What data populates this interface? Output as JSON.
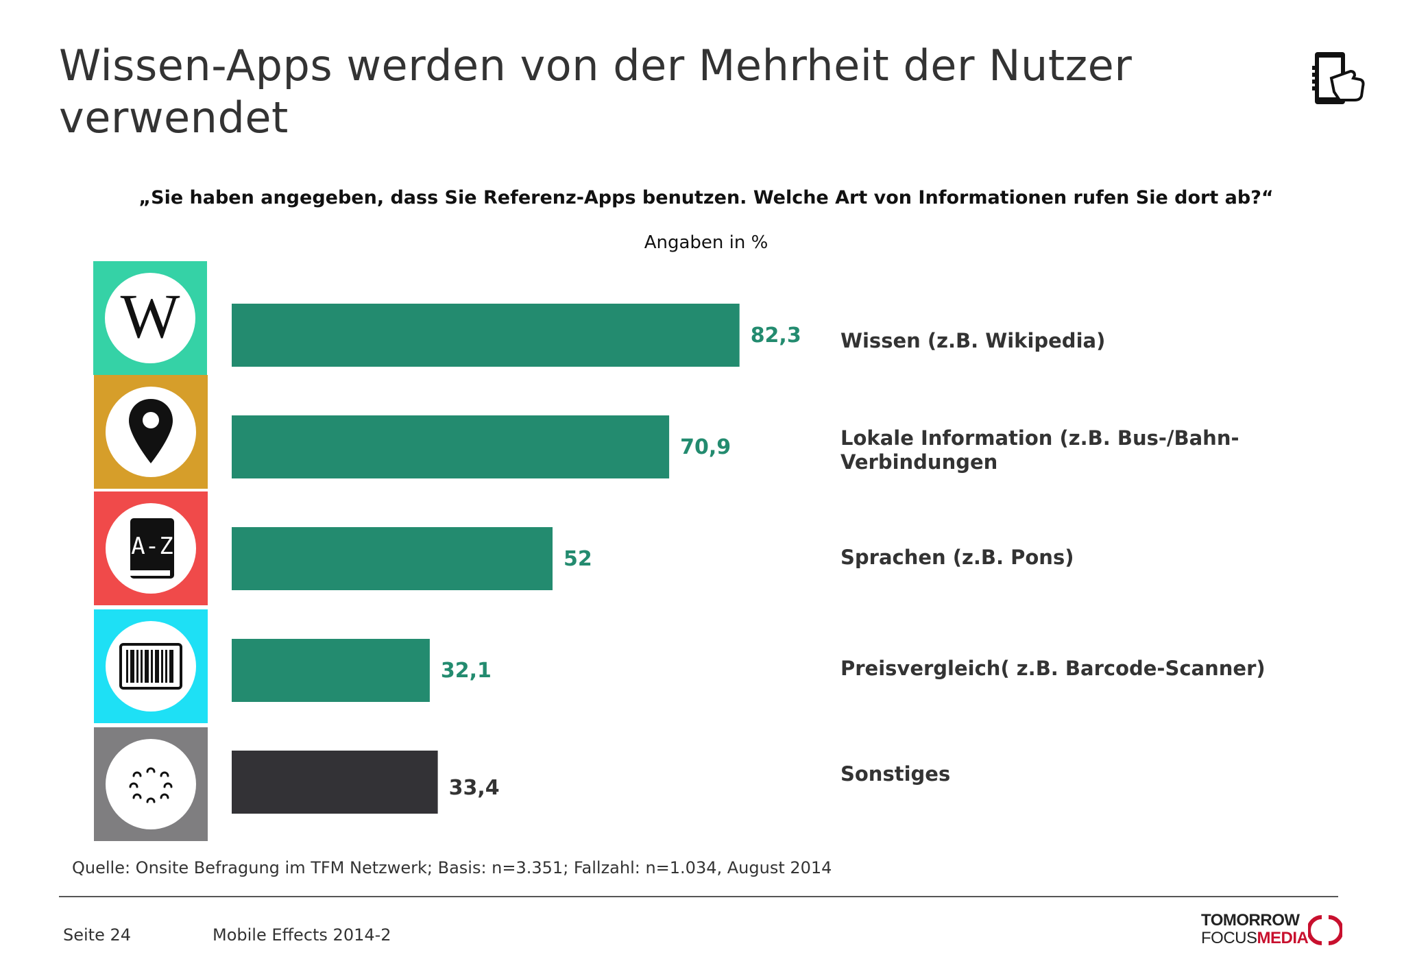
{
  "title": "Wissen-Apps werden von der Mehrheit der Nutzer verwendet",
  "question": "„Sie haben angegeben, dass Sie Referenz-Apps benutzen. Welche Art von Informationen rufen Sie dort ab?“",
  "unit_note": "Angaben in %",
  "icons": {
    "header": "smartphone-touch-icon",
    "rows": [
      "wikipedia-icon",
      "map-pin-icon",
      "dictionary-az-icon",
      "barcode-icon",
      "dots-circle-icon"
    ]
  },
  "colors": {
    "bar_main": "#238b6f",
    "bar_other": "#333236",
    "value_main": "#238b6f",
    "value_other": "#333333",
    "tiles": [
      "#35d2a6",
      "#d69e2a",
      "#f04a4a",
      "#1ee0f5",
      "#7f7e80"
    ],
    "logo_accent": "#c8102e"
  },
  "chart_data": {
    "type": "bar",
    "orientation": "horizontal",
    "categories": [
      "Wissen (z.B. Wikipedia)",
      "Lokale Information (z.B. Bus-/Bahn-Verbindungen",
      "Sprachen (z.B. Pons)",
      "Preisvergleich( z.B. Barcode-Scanner)",
      "Sonstiges"
    ],
    "values": [
      82.3,
      70.9,
      52,
      32.1,
      33.4
    ],
    "value_labels": [
      "82,3",
      "70,9",
      "52",
      "32,1",
      "33,4"
    ],
    "xlim": [
      0,
      100
    ],
    "grid": false,
    "legend": "none"
  },
  "footer": {
    "source": "Quelle: Onsite Befragung im TFM Netzwerk; Basis: n=3.351; Fallzahl: n=1.034, August 2014",
    "page": "Seite 24",
    "document": "Mobile Effects 2014-2",
    "logo_line1": "TOMORROW",
    "logo_line2a": "FOCUS",
    "logo_line2b": "MEDIA"
  }
}
